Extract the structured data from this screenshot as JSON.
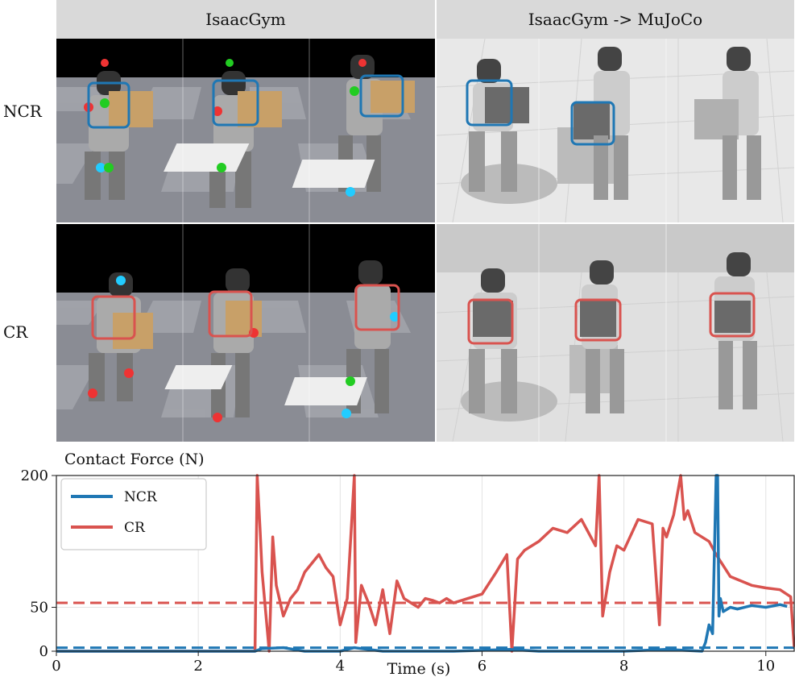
{
  "figure": {
    "headers": [
      "IsaacGym",
      "IsaacGym -> MuJoCo"
    ],
    "row_labels": [
      "NCR",
      "CR"
    ],
    "colors": {
      "ncr": "#1f77b4",
      "cr": "#d9534f",
      "header_bg": "#d9d9d9",
      "sky": "#000000"
    }
  },
  "chart_data": {
    "type": "line",
    "title": "Contact Force (N)",
    "xlabel": "Time (s)",
    "ylabel": "",
    "xlim": [
      0,
      10.4
    ],
    "ylim": [
      0,
      200
    ],
    "x_ticks": [
      0,
      2,
      4,
      6,
      8,
      10
    ],
    "y_ticks": [
      0,
      50,
      200
    ],
    "grid": true,
    "legend": {
      "placement": "top-left",
      "entries": [
        "NCR",
        "CR"
      ]
    },
    "series": [
      {
        "name": "NCR",
        "color": "#1f77b4",
        "x": [
          0,
          2.8,
          2.9,
          3.2,
          3.5,
          3.6,
          4.0,
          4.2,
          4.6,
          5.0,
          5.6,
          6.4,
          6.8,
          7.6,
          8.0,
          8.6,
          9.1,
          9.15,
          9.2,
          9.25,
          9.3,
          9.32,
          9.34,
          9.36,
          9.4,
          9.5,
          9.6,
          9.8,
          10.0,
          10.2,
          10.3
        ],
        "values": [
          0,
          0,
          3,
          4,
          0,
          0,
          0,
          4,
          0,
          0,
          0,
          2,
          0,
          0,
          0,
          2,
          0,
          10,
          30,
          20,
          200,
          200,
          40,
          60,
          45,
          50,
          48,
          52,
          50,
          53,
          51
        ]
      },
      {
        "name": "CR",
        "color": "#d9534f",
        "x": [
          0,
          2.8,
          2.83,
          2.87,
          2.9,
          3.0,
          3.05,
          3.1,
          3.2,
          3.3,
          3.4,
          3.5,
          3.6,
          3.7,
          3.8,
          3.9,
          4.0,
          4.1,
          4.2,
          4.22,
          4.3,
          4.4,
          4.5,
          4.6,
          4.7,
          4.8,
          4.9,
          5.0,
          5.1,
          5.2,
          5.3,
          5.4,
          5.5,
          5.6,
          5.8,
          6.0,
          6.2,
          6.35,
          6.42,
          6.5,
          6.6,
          6.8,
          7.0,
          7.2,
          7.4,
          7.6,
          7.65,
          7.7,
          7.8,
          7.9,
          8.0,
          8.2,
          8.4,
          8.5,
          8.55,
          8.6,
          8.7,
          8.8,
          8.85,
          8.9,
          9.0,
          9.2,
          9.3,
          9.5,
          9.8,
          10.0,
          10.2,
          10.35,
          10.4
        ],
        "values": [
          0,
          0,
          200,
          140,
          90,
          0,
          130,
          75,
          40,
          60,
          70,
          90,
          100,
          110,
          95,
          85,
          30,
          60,
          200,
          10,
          75,
          55,
          30,
          70,
          20,
          80,
          60,
          55,
          50,
          60,
          58,
          55,
          60,
          55,
          60,
          65,
          90,
          110,
          0,
          105,
          115,
          125,
          140,
          135,
          150,
          120,
          200,
          40,
          90,
          120,
          115,
          150,
          145,
          30,
          140,
          130,
          155,
          200,
          150,
          160,
          135,
          125,
          110,
          85,
          75,
          72,
          70,
          62,
          5
        ]
      }
    ],
    "reference_lines": [
      {
        "series": "NCR",
        "y": 4,
        "style": "dashed"
      },
      {
        "series": "CR",
        "y": 55,
        "style": "dashed"
      }
    ]
  }
}
